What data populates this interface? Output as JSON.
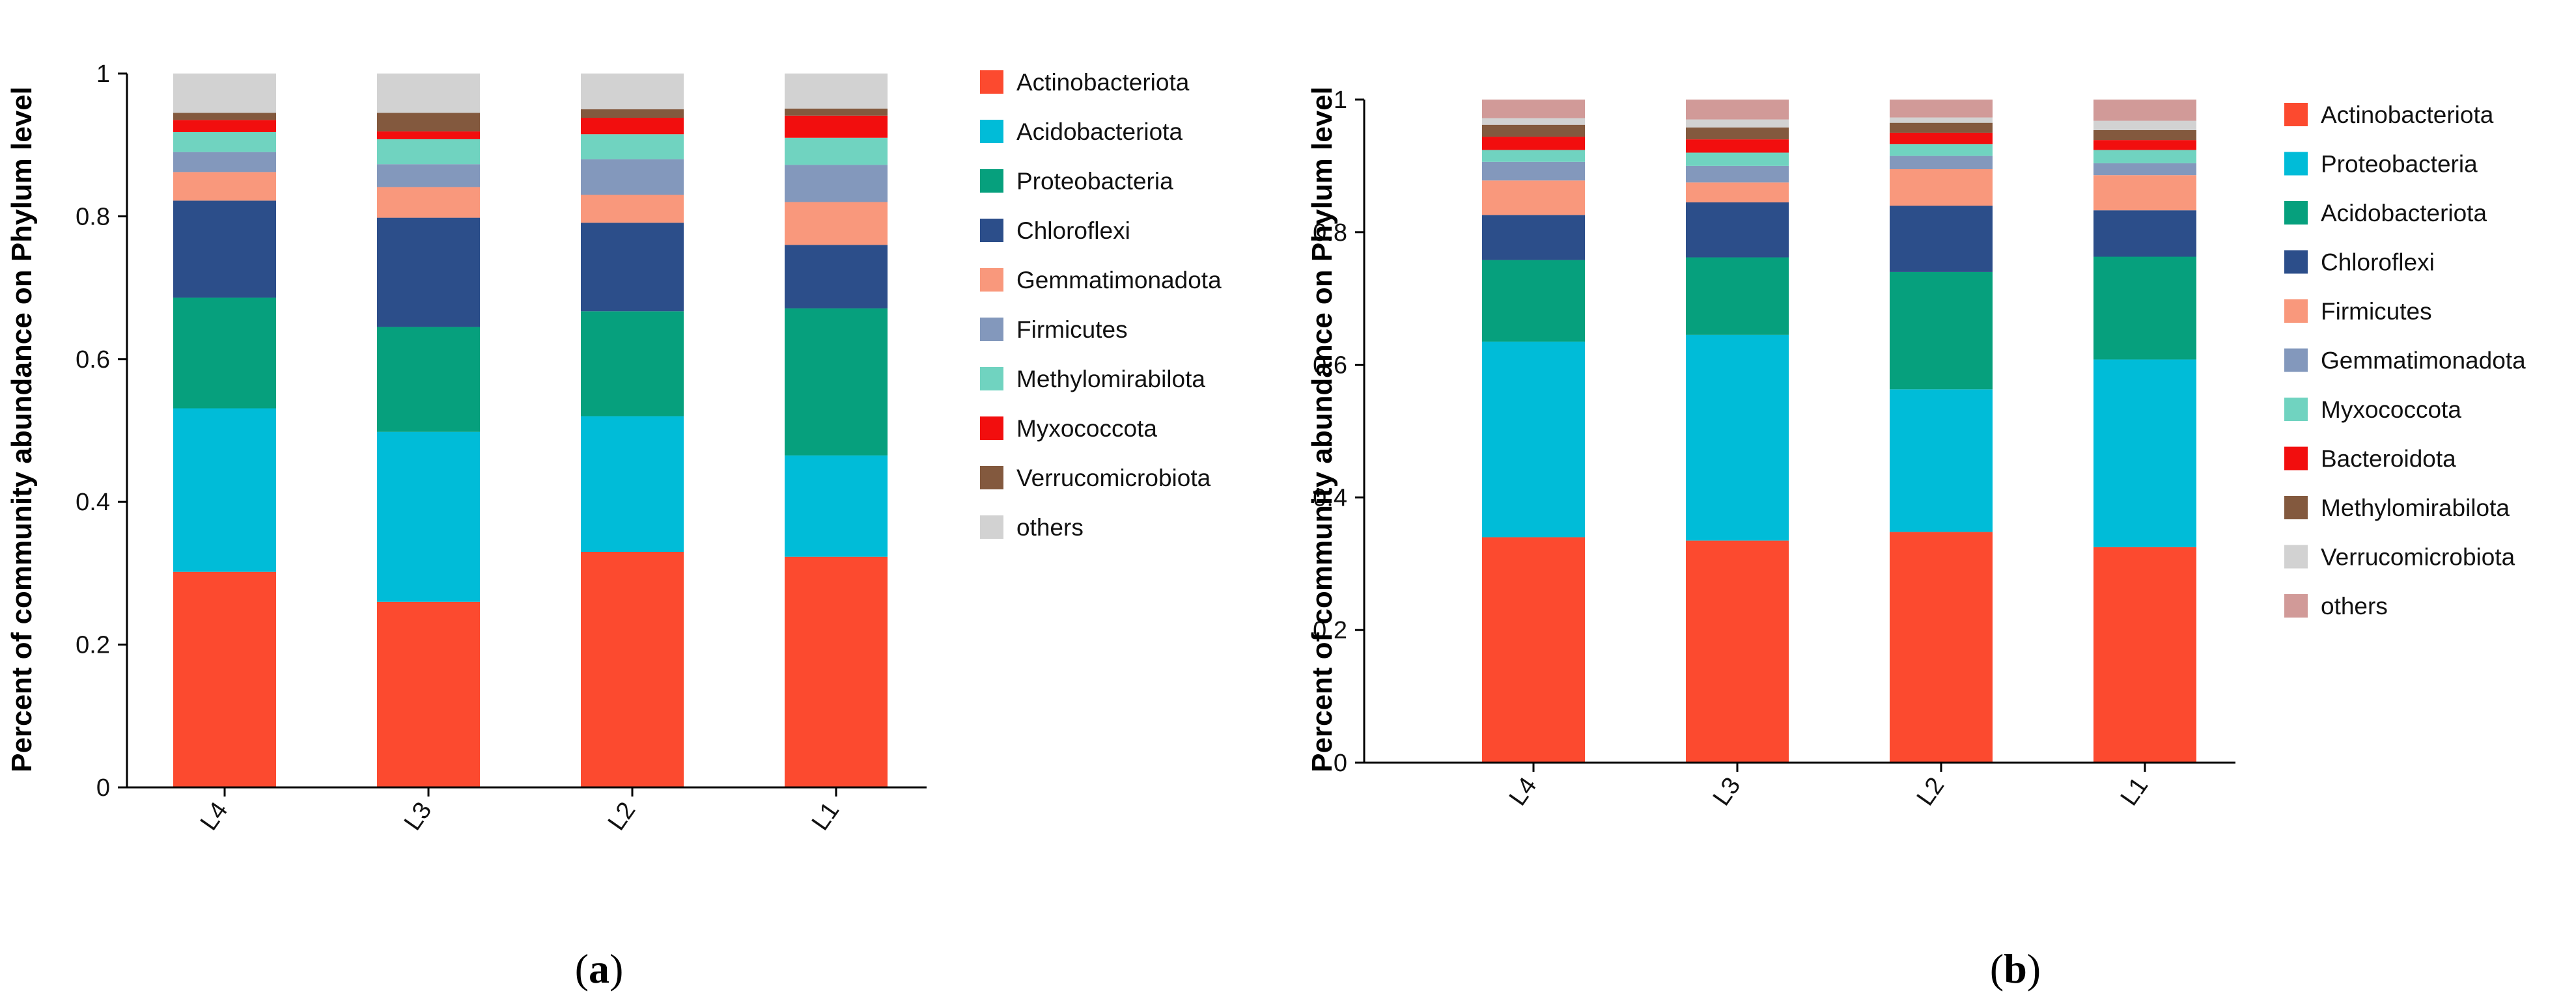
{
  "chart_data": [
    {
      "type": "bar",
      "stacked": true,
      "panel": "(a)",
      "panel_open": "(",
      "panel_letter": "a",
      "panel_close": ")",
      "ylabel": "Percent of community abundance on Phylum level",
      "ylim": [
        0,
        1
      ],
      "yticks": [
        "0",
        "0.2",
        "0.4",
        "0.6",
        "0.8",
        "1"
      ],
      "categories": [
        "L4",
        "L3",
        "L2",
        "L1"
      ],
      "series": [
        {
          "name": "Actinobacteriota",
          "color": "#fc4a2f",
          "values": [
            0.302,
            0.26,
            0.33,
            0.323
          ]
        },
        {
          "name": "Acidobacteriota",
          "color": "#00bcd8",
          "values": [
            0.229,
            0.238,
            0.19,
            0.142
          ]
        },
        {
          "name": "Proteobacteria",
          "color": "#06a07d",
          "values": [
            0.155,
            0.147,
            0.147,
            0.206
          ]
        },
        {
          "name": "Chloroflexi",
          "color": "#2c4e8a",
          "values": [
            0.136,
            0.153,
            0.124,
            0.089
          ]
        },
        {
          "name": "Gemmatimonadota",
          "color": "#f9987c",
          "values": [
            0.04,
            0.043,
            0.039,
            0.06
          ]
        },
        {
          "name": "Firmicutes",
          "color": "#8398bc",
          "values": [
            0.028,
            0.032,
            0.05,
            0.052
          ]
        },
        {
          "name": "Methylomirabilota",
          "color": "#70d3c0",
          "values": [
            0.028,
            0.035,
            0.035,
            0.038
          ]
        },
        {
          "name": "Myxococcota",
          "color": "#f20e0e",
          "values": [
            0.017,
            0.011,
            0.023,
            0.031
          ]
        },
        {
          "name": "Verrucomicrobiota",
          "color": "#83593e",
          "values": [
            0.01,
            0.026,
            0.012,
            0.01
          ]
        },
        {
          "name": "others",
          "color": "#d2d2d2",
          "values": [
            0.055,
            0.055,
            0.05,
            0.049
          ]
        }
      ]
    },
    {
      "type": "bar",
      "stacked": true,
      "panel": "(b)",
      "panel_open": "(",
      "panel_letter": "b",
      "panel_close": ")",
      "ylabel": "Percent of community abundance on Phylum level",
      "ylim": [
        0,
        1
      ],
      "yticks": [
        "0",
        "0.2",
        "0.4",
        "0.6",
        "0.8",
        "1"
      ],
      "categories": [
        "L4",
        "L3",
        "L2",
        "L1"
      ],
      "series": [
        {
          "name": "Actinobacteriota",
          "color": "#fc4a2f",
          "values": [
            0.34,
            0.335,
            0.348,
            0.325
          ]
        },
        {
          "name": "Proteobacteria",
          "color": "#00bcd8",
          "values": [
            0.295,
            0.31,
            0.215,
            0.283
          ]
        },
        {
          "name": "Acidobacteriota",
          "color": "#06a07d",
          "values": [
            0.123,
            0.117,
            0.177,
            0.155
          ]
        },
        {
          "name": "Chloroflexi",
          "color": "#2c4e8a",
          "values": [
            0.068,
            0.083,
            0.1,
            0.07
          ]
        },
        {
          "name": "Firmicutes",
          "color": "#f9987c",
          "values": [
            0.052,
            0.03,
            0.055,
            0.053
          ]
        },
        {
          "name": "Gemmatimonadota",
          "color": "#8398bc",
          "values": [
            0.028,
            0.025,
            0.02,
            0.018
          ]
        },
        {
          "name": "Myxococcota",
          "color": "#70d3c0",
          "values": [
            0.018,
            0.02,
            0.018,
            0.02
          ]
        },
        {
          "name": "Bacteroidota",
          "color": "#f20e0e",
          "values": [
            0.02,
            0.02,
            0.017,
            0.015
          ]
        },
        {
          "name": "Methylomirabilota",
          "color": "#83593e",
          "values": [
            0.018,
            0.018,
            0.015,
            0.015
          ]
        },
        {
          "name": "Verrucomicrobiota",
          "color": "#d2d2d2",
          "values": [
            0.01,
            0.012,
            0.008,
            0.014
          ]
        },
        {
          "name": "others",
          "color": "#d19a98",
          "values": [
            0.028,
            0.03,
            0.027,
            0.032
          ]
        }
      ]
    }
  ]
}
